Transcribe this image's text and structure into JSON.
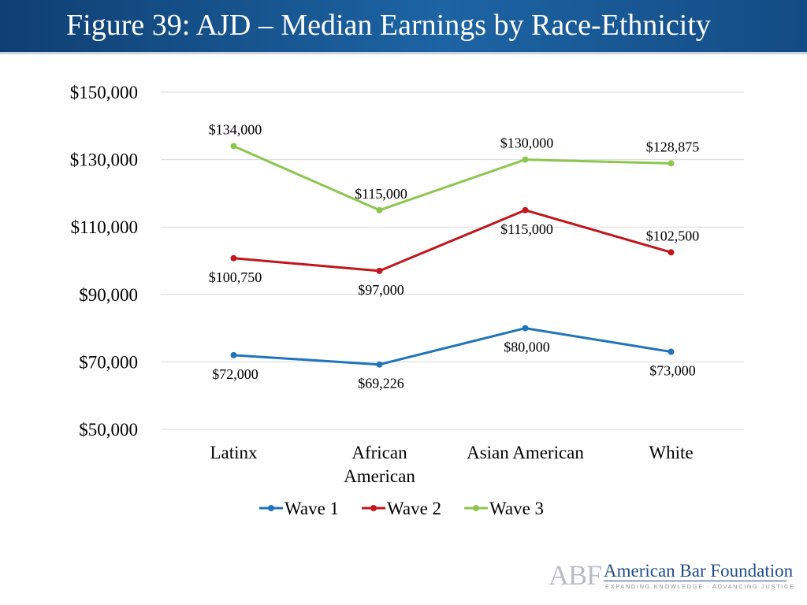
{
  "header": {
    "title": "Figure 39: AJD – Median Earnings by Race-Ethnicity"
  },
  "chart_data": {
    "type": "line",
    "title": "Figure 39: AJD – Median Earnings by Race-Ethnicity",
    "categories": [
      "Latinx",
      "African American",
      "Asian American",
      "White"
    ],
    "category_label_lines": [
      [
        "Latinx"
      ],
      [
        "African",
        "American"
      ],
      [
        "Asian American"
      ],
      [
        "White"
      ]
    ],
    "ylim": [
      50000,
      150000
    ],
    "yticks": [
      50000,
      70000,
      90000,
      110000,
      130000,
      150000
    ],
    "ytick_labels": [
      "$50,000",
      "$70,000",
      "$90,000",
      "$110,000",
      "$130,000",
      "$150,000"
    ],
    "grid": true,
    "legend_position": "bottom",
    "series": [
      {
        "name": "Wave 1",
        "color": "#1f74bc",
        "values": [
          72000,
          69226,
          80000,
          73000
        ],
        "labels": [
          "$72,000",
          "$69,226",
          "$80,000",
          "$73,000"
        ],
        "label_side": [
          "below",
          "below",
          "below",
          "below"
        ]
      },
      {
        "name": "Wave 2",
        "color": "#c0161c",
        "values": [
          100750,
          97000,
          115000,
          102500
        ],
        "labels": [
          "$100,750",
          "$97,000",
          "$115,000",
          "$102,500"
        ],
        "label_side": [
          "below",
          "below",
          "below",
          "above"
        ]
      },
      {
        "name": "Wave 3",
        "color": "#8dc64f",
        "values": [
          134000,
          115000,
          130000,
          128875
        ],
        "labels": [
          "$134,000",
          "$115,000",
          "$130,000",
          "$128,875"
        ],
        "label_side": [
          "above",
          "above",
          "above",
          "above"
        ]
      }
    ]
  },
  "logo": {
    "initials": "ABF",
    "name": "American Bar Foundation",
    "tagline": "EXPANDING KNOWLEDGE · ADVANCING JUSTICE"
  }
}
